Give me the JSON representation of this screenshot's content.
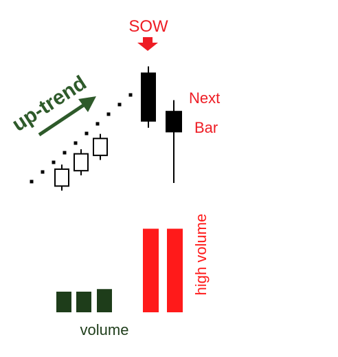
{
  "chart_data": {
    "type": "candlestick",
    "labels": {
      "signal": "SOW",
      "trend": "up-trend",
      "next_bar": [
        "Next",
        "Bar"
      ],
      "high_volume": "high volume",
      "volume": "volume"
    },
    "uptrend_dots": 10,
    "candles": [
      {
        "open": 2.0,
        "close": 3.1,
        "high": 3.4,
        "low": 1.7,
        "kind": "up"
      },
      {
        "open": 3.0,
        "close": 4.1,
        "high": 4.4,
        "low": 2.7,
        "kind": "up"
      },
      {
        "open": 4.0,
        "close": 5.1,
        "high": 5.4,
        "low": 3.7,
        "kind": "up"
      }
    ],
    "signal_bar": {
      "open": 9.4,
      "close": 6.2,
      "high": 9.8,
      "low": 5.8
    },
    "next_bar": {
      "open": 6.9,
      "close": 5.5,
      "high": 7.6,
      "low": 2.2
    },
    "volume": {
      "low_bars": [
        40,
        40,
        45
      ],
      "high_bars": [
        180,
        180
      ]
    },
    "colors": {
      "signal": "#ee1c24",
      "trend": "#2e5a2a",
      "low_volume": "#1e3d1a",
      "high_volume": "#ff1a1a",
      "candle": "#000000"
    }
  }
}
